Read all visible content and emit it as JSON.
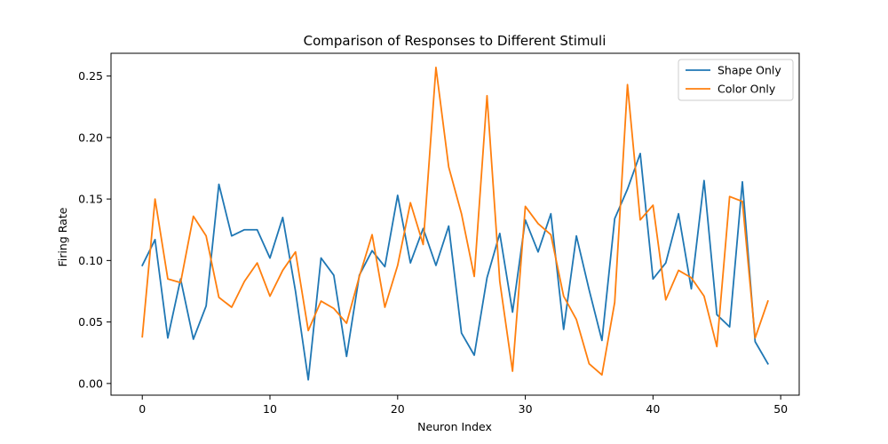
{
  "chart_data": {
    "type": "line",
    "title": "Comparison of Responses to Different Stimuli",
    "xlabel": "Neuron Index",
    "ylabel": "Firing Rate",
    "xlim": [
      -2.45,
      51.45
    ],
    "ylim": [
      -0.0095,
      0.2685
    ],
    "xticks": [
      0,
      10,
      20,
      30,
      40,
      50
    ],
    "xtick_labels": [
      "0",
      "10",
      "20",
      "30",
      "40",
      "50"
    ],
    "yticks": [
      0.0,
      0.05,
      0.1,
      0.15,
      0.2,
      0.25
    ],
    "ytick_labels": [
      "0.00",
      "0.05",
      "0.10",
      "0.15",
      "0.20",
      "0.25"
    ],
    "grid": false,
    "legend_position": "top-right",
    "x": [
      0,
      1,
      2,
      3,
      4,
      5,
      6,
      7,
      8,
      9,
      10,
      11,
      12,
      13,
      14,
      15,
      16,
      17,
      18,
      19,
      20,
      21,
      22,
      23,
      24,
      25,
      26,
      27,
      28,
      29,
      30,
      31,
      32,
      33,
      34,
      35,
      36,
      37,
      38,
      39,
      40,
      41,
      42,
      43,
      44,
      45,
      46,
      47,
      48,
      49
    ],
    "series": [
      {
        "name": "Shape Only",
        "color": "#1f77b4",
        "values": [
          0.096,
          0.117,
          0.037,
          0.085,
          0.036,
          0.063,
          0.162,
          0.12,
          0.125,
          0.125,
          0.102,
          0.135,
          0.075,
          0.003,
          0.102,
          0.088,
          0.022,
          0.088,
          0.108,
          0.095,
          0.153,
          0.098,
          0.126,
          0.096,
          0.128,
          0.041,
          0.023,
          0.086,
          0.122,
          0.058,
          0.133,
          0.107,
          0.138,
          0.044,
          0.12,
          0.076,
          0.035,
          0.134,
          0.158,
          0.187,
          0.085,
          0.098,
          0.138,
          0.077,
          0.165,
          0.056,
          0.046,
          0.164,
          0.034,
          0.016
        ]
      },
      {
        "name": "Color Only",
        "color": "#ff7f0e",
        "values": [
          0.038,
          0.15,
          0.085,
          0.082,
          0.136,
          0.12,
          0.07,
          0.062,
          0.083,
          0.098,
          0.071,
          0.092,
          0.107,
          0.043,
          0.067,
          0.061,
          0.049,
          0.087,
          0.121,
          0.062,
          0.096,
          0.147,
          0.113,
          0.257,
          0.176,
          0.138,
          0.087,
          0.234,
          0.083,
          0.01,
          0.144,
          0.13,
          0.121,
          0.071,
          0.052,
          0.016,
          0.007,
          0.066,
          0.243,
          0.133,
          0.145,
          0.068,
          0.092,
          0.086,
          0.071,
          0.03,
          0.152,
          0.148,
          0.037,
          0.067
        ]
      }
    ]
  }
}
